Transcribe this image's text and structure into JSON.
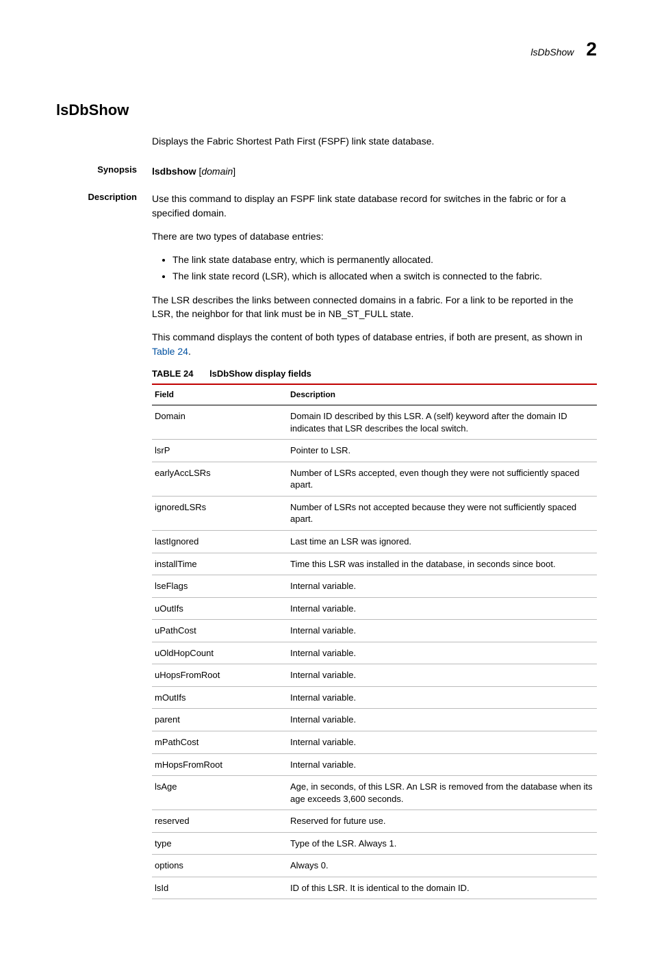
{
  "header": {
    "section": "lsDbShow",
    "chapter": "2"
  },
  "title": "lsDbShow",
  "intro": "Displays the Fabric Shortest Path First (FSPF) link state database.",
  "synopsis": {
    "label": "Synopsis",
    "cmd": "lsdbshow",
    "arg": "domain"
  },
  "description": {
    "label": "Description",
    "p1": "Use this command to display an FSPF link state database record for switches in the fabric or for a specified domain.",
    "p2": "There are two types of database entries:",
    "b1": "The link state database entry, which is permanently allocated.",
    "b2": "The link state record (LSR), which is allocated when a switch is connected to the fabric.",
    "p3": "The LSR describes the links between connected domains in a fabric. For a link to be reported in the LSR, the neighbor for that link must be in NB_ST_FULL state.",
    "p4a": "This command displays the content of both types of database entries, if both are present, as shown in ",
    "p4link": "Table 24",
    "p4b": "."
  },
  "table": {
    "label": "TABLE 24",
    "caption": "lsDbShow display fields",
    "col1": "Field",
    "col2": "Description",
    "rows": [
      {
        "f": "Domain",
        "d": "Domain ID described by this LSR. A (self) keyword after the domain ID indicates that LSR describes the local switch."
      },
      {
        "f": "lsrP",
        "d": "Pointer to LSR."
      },
      {
        "f": "earlyAccLSRs",
        "d": "Number of LSRs accepted, even though they were not sufficiently spaced apart."
      },
      {
        "f": "ignoredLSRs",
        "d": "Number of LSRs not accepted because they were not sufficiently spaced apart."
      },
      {
        "f": "lastIgnored",
        "d": "Last time an LSR was ignored."
      },
      {
        "f": "installTime",
        "d": "Time this LSR was installed in the database, in seconds since boot."
      },
      {
        "f": "lseFlags",
        "d": "Internal variable."
      },
      {
        "f": "uOutIfs",
        "d": "Internal variable."
      },
      {
        "f": "uPathCost",
        "d": "Internal variable."
      },
      {
        "f": "uOldHopCount",
        "d": "Internal variable."
      },
      {
        "f": "uHopsFromRoot",
        "d": "Internal variable."
      },
      {
        "f": "mOutIfs",
        "d": "Internal variable."
      },
      {
        "f": "parent",
        "d": "Internal variable."
      },
      {
        "f": "mPathCost",
        "d": "Internal variable."
      },
      {
        "f": "mHopsFromRoot",
        "d": "Internal variable."
      },
      {
        "f": "lsAge",
        "d": "Age, in seconds, of this LSR. An LSR is removed from the database when its age exceeds 3,600 seconds."
      },
      {
        "f": "reserved",
        "d": "Reserved for future use."
      },
      {
        "f": "type",
        "d": "Type of the LSR. Always 1."
      },
      {
        "f": "options",
        "d": "Always 0."
      },
      {
        "f": "lsId",
        "d": "ID of this LSR. It is identical to the domain ID."
      }
    ]
  }
}
